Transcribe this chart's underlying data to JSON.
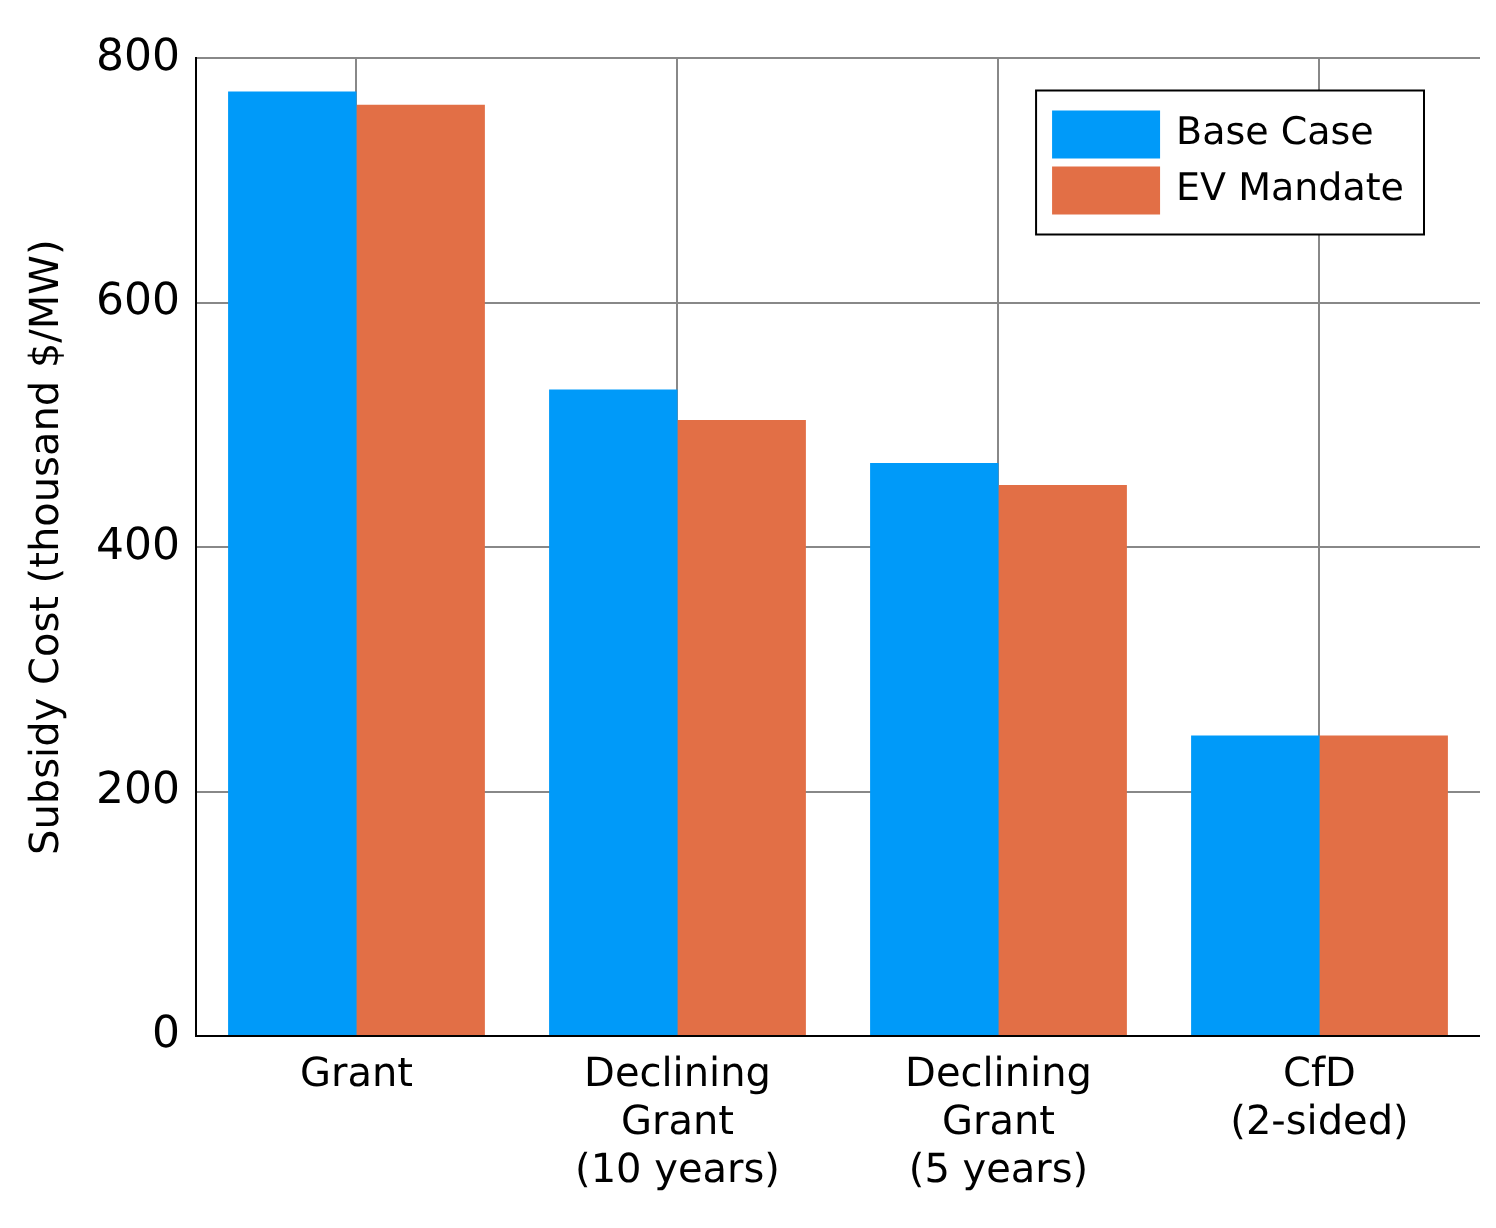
{
  "chart_data": {
    "type": "bar",
    "ylabel": "Subsidy Cost (thousand $/MW)",
    "categories": [
      "Grant",
      "Declining\nGrant\n(10 years)",
      "Declining\nGrant\n(5 years)",
      "CfD\n(2-sided)"
    ],
    "series": [
      {
        "name": "Base Case",
        "color": "#009af9",
        "values": [
          773,
          529,
          469,
          246
        ]
      },
      {
        "name": "EV Mandate",
        "color": "#e26f46",
        "values": [
          762,
          504,
          451,
          246
        ]
      }
    ],
    "ylim": [
      0,
      800
    ],
    "yticks": [
      0,
      200,
      400,
      600,
      800
    ],
    "grid": true,
    "legend": "top right"
  }
}
